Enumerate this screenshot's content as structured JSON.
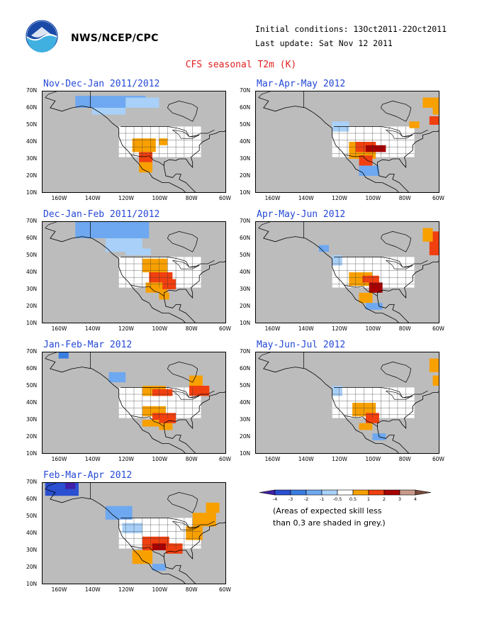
{
  "header": {
    "agency": "NWS/NCEP/CPC",
    "initial_conditions": "Initial conditions: 13Oct2011-22Oct2011",
    "last_update": "Last update: Sat Nov 12 2011",
    "title": "CFS seasonal T2m (K)"
  },
  "axes": {
    "lat_labels": [
      "70N",
      "60N",
      "50N",
      "40N",
      "30N",
      "20N",
      "10N"
    ],
    "lon_labels": [
      "160W",
      "140W",
      "120W",
      "100W",
      "80W",
      "60W"
    ]
  },
  "panels": [
    {
      "label": "Nov-Dec-Jan 2011/2012",
      "anomaly": "cool-north warm-southwest"
    },
    {
      "label": "Mar-Apr-May 2012",
      "anomaly": "warm-south-central and northeast"
    },
    {
      "label": "Dec-Jan-Feb 2011/2012",
      "anomaly": "cool-north warm-south"
    },
    {
      "label": "Apr-May-Jun 2012",
      "anomaly": "warm-south-central and northeast"
    },
    {
      "label": "Jan-Feb-Mar 2012",
      "anomaly": "warm-south and great-lakes"
    },
    {
      "label": "May-Jun-Jul 2012",
      "anomaly": "warm-south-central"
    },
    {
      "label": "Feb-Mar-Apr 2012",
      "anomaly": "cool-alaska warm-south"
    }
  ],
  "legend": {
    "ticks": [
      "-4",
      "-3",
      "-2",
      "-1",
      "-0.5",
      "0.5",
      "1",
      "2",
      "3",
      "4"
    ],
    "colors": [
      "#4020a8",
      "#2a4fd0",
      "#3a7de0",
      "#6ea8f0",
      "#a8d0f8",
      "#ffffff",
      "#f8a000",
      "#f04010",
      "#a80000",
      "#c89a8a",
      "#7a4a3a"
    ],
    "note_line1": "(Areas of expected skill less",
    "note_line2": "than 0.3 are shaded in grey.)"
  },
  "colors": {
    "land_grey": "#bcbcbc",
    "ocean_grey": "#bcbcbc",
    "title_red": "#e02020",
    "panel_title_blue": "#2448d6"
  }
}
